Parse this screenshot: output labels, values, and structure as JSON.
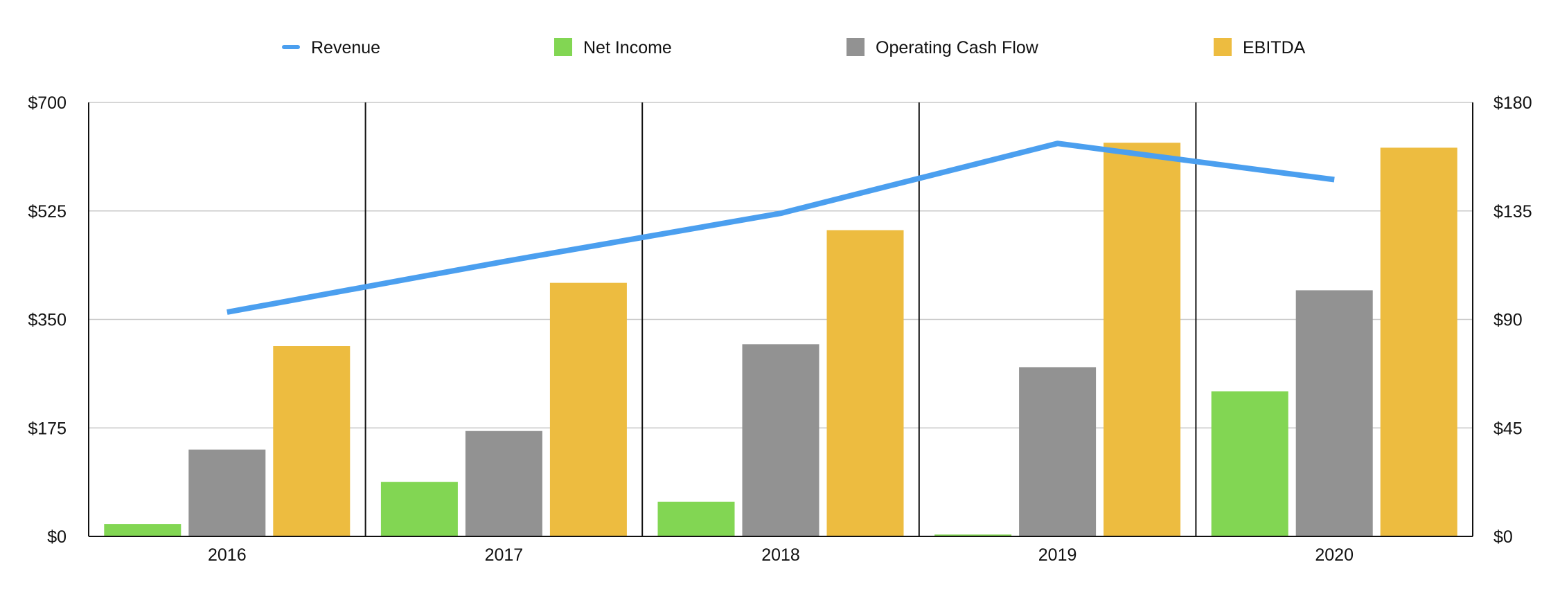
{
  "chart_data": {
    "type": "bar",
    "categories": [
      "2016",
      "2017",
      "2018",
      "2019",
      "2020"
    ],
    "bar_series": [
      {
        "name": "Net Income",
        "values": [
          20,
          88,
          56,
          3,
          234
        ],
        "color": "#82d653",
        "axis": "left"
      },
      {
        "name": "Operating Cash Flow",
        "values": [
          140,
          170,
          310,
          273,
          397
        ],
        "color": "#929292",
        "axis": "left"
      },
      {
        "name": "EBITDA",
        "values": [
          307,
          409,
          494,
          635,
          627
        ],
        "color": "#edbc40",
        "axis": "left"
      }
    ],
    "line_series": [
      {
        "name": "Revenue",
        "values": [
          93,
          114,
          134,
          163,
          148
        ],
        "color": "#4b9fef",
        "axis": "right"
      }
    ],
    "y_left": {
      "ylim": [
        0,
        700
      ],
      "ticks": [
        0,
        175,
        350,
        525,
        700
      ],
      "tick_labels": [
        "$0",
        "$175",
        "$350",
        "$525",
        "$700"
      ]
    },
    "y_right": {
      "ylim": [
        0,
        180
      ],
      "ticks": [
        0,
        45,
        90,
        135,
        180
      ],
      "tick_labels": [
        "$0",
        "$45",
        "$90",
        "$135",
        "$180"
      ]
    },
    "legend": {
      "placement": "top",
      "items": [
        {
          "label": "Revenue",
          "marker": "line",
          "color": "#4b9fef"
        },
        {
          "label": "Net Income",
          "marker": "square",
          "color": "#82d653"
        },
        {
          "label": "Operating Cash Flow",
          "marker": "square",
          "color": "#929292"
        },
        {
          "label": "EBITDA",
          "marker": "square",
          "color": "#edbc40"
        }
      ]
    },
    "grid": true,
    "title": "",
    "xlabel": "",
    "ylabel": ""
  }
}
